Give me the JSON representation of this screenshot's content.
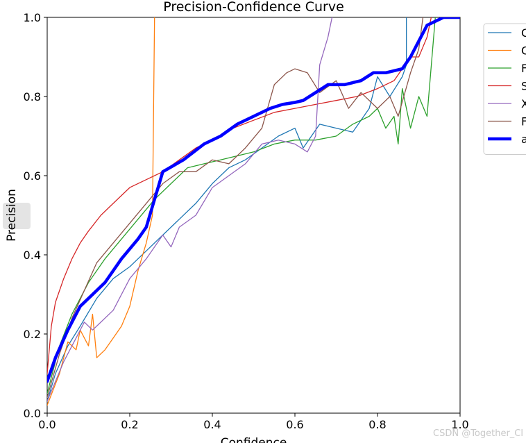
{
  "chart_data": {
    "type": "line",
    "title": "Precision-Confidence Curve",
    "xlabel": "Confidence",
    "ylabel": "Precision",
    "xlim": [
      0,
      1
    ],
    "ylim": [
      0,
      1
    ],
    "xticks": [
      "0.0",
      "0.2",
      "0.4",
      "0.6",
      "0.8",
      "1.0"
    ],
    "yticks": [
      "0.0",
      "0.2",
      "0.4",
      "0.6",
      "0.8",
      "1.0"
    ],
    "grid": false,
    "legend_position": "right (partially cut off)",
    "series": [
      {
        "name": "C",
        "color": "#1f77b4",
        "width": 1.3,
        "x": [
          0,
          0.02,
          0.05,
          0.08,
          0.12,
          0.16,
          0.2,
          0.24,
          0.28,
          0.32,
          0.36,
          0.4,
          0.44,
          0.48,
          0.52,
          0.56,
          0.6,
          0.62,
          0.66,
          0.7,
          0.74,
          0.78,
          0.8,
          0.83,
          0.86,
          0.87,
          0.87
        ],
        "values": [
          0.03,
          0.1,
          0.17,
          0.22,
          0.29,
          0.34,
          0.37,
          0.41,
          0.45,
          0.49,
          0.53,
          0.58,
          0.62,
          0.64,
          0.67,
          0.7,
          0.72,
          0.67,
          0.73,
          0.72,
          0.71,
          0.77,
          0.85,
          0.8,
          0.85,
          0.88,
          1.0
        ]
      },
      {
        "name": "C",
        "color": "#ff7f0e",
        "width": 1.3,
        "x": [
          0,
          0.03,
          0.05,
          0.07,
          0.08,
          0.1,
          0.11,
          0.12,
          0.14,
          0.16,
          0.18,
          0.2,
          0.22,
          0.24,
          0.255,
          0.258,
          0.26
        ],
        "values": [
          0.02,
          0.1,
          0.18,
          0.16,
          0.21,
          0.17,
          0.25,
          0.14,
          0.16,
          0.19,
          0.22,
          0.27,
          0.36,
          0.43,
          0.5,
          0.8,
          1.0
        ]
      },
      {
        "name": "F",
        "color": "#2ca02c",
        "width": 1.3,
        "x": [
          0,
          0.03,
          0.06,
          0.1,
          0.14,
          0.18,
          0.22,
          0.26,
          0.3,
          0.34,
          0.38,
          0.42,
          0.46,
          0.5,
          0.55,
          0.6,
          0.65,
          0.7,
          0.74,
          0.78,
          0.8,
          0.82,
          0.84,
          0.85,
          0.86,
          0.88,
          0.9,
          0.92,
          0.94
        ],
        "values": [
          0.05,
          0.17,
          0.25,
          0.33,
          0.39,
          0.44,
          0.49,
          0.54,
          0.58,
          0.62,
          0.63,
          0.64,
          0.65,
          0.66,
          0.68,
          0.69,
          0.69,
          0.7,
          0.73,
          0.75,
          0.77,
          0.72,
          0.75,
          0.68,
          0.82,
          0.72,
          0.8,
          0.75,
          1.0
        ]
      },
      {
        "name": "S",
        "color": "#d62728",
        "width": 1.3,
        "x": [
          0,
          0.01,
          0.02,
          0.04,
          0.06,
          0.08,
          0.1,
          0.13,
          0.16,
          0.2,
          0.24,
          0.28,
          0.32,
          0.36,
          0.4,
          0.45,
          0.5,
          0.55,
          0.6,
          0.65,
          0.7,
          0.75,
          0.8,
          0.84,
          0.86,
          0.88,
          0.9,
          0.92,
          0.93
        ],
        "values": [
          0.1,
          0.22,
          0.28,
          0.34,
          0.39,
          0.43,
          0.46,
          0.5,
          0.53,
          0.57,
          0.59,
          0.61,
          0.64,
          0.67,
          0.69,
          0.72,
          0.74,
          0.76,
          0.77,
          0.78,
          0.79,
          0.8,
          0.82,
          0.84,
          0.87,
          0.9,
          0.9,
          0.95,
          1.0
        ]
      },
      {
        "name": "X",
        "color": "#9467bd",
        "width": 1.3,
        "x": [
          0,
          0.04,
          0.07,
          0.09,
          0.11,
          0.13,
          0.16,
          0.2,
          0.24,
          0.28,
          0.3,
          0.32,
          0.36,
          0.4,
          0.44,
          0.48,
          0.52,
          0.56,
          0.6,
          0.63,
          0.65,
          0.66,
          0.68,
          0.69
        ],
        "values": [
          0.03,
          0.13,
          0.19,
          0.23,
          0.21,
          0.23,
          0.26,
          0.34,
          0.39,
          0.45,
          0.42,
          0.47,
          0.5,
          0.57,
          0.6,
          0.63,
          0.68,
          0.69,
          0.68,
          0.66,
          0.7,
          0.88,
          0.95,
          1.0
        ]
      },
      {
        "name": "F",
        "color": "#8c564b",
        "width": 1.3,
        "x": [
          0,
          0.03,
          0.06,
          0.09,
          0.12,
          0.16,
          0.2,
          0.24,
          0.28,
          0.32,
          0.36,
          0.4,
          0.44,
          0.48,
          0.52,
          0.55,
          0.58,
          0.6,
          0.63,
          0.66,
          0.7,
          0.73,
          0.76,
          0.8,
          0.83,
          0.85,
          0.88,
          0.9,
          0.91
        ],
        "values": [
          0.04,
          0.15,
          0.24,
          0.31,
          0.38,
          0.43,
          0.48,
          0.53,
          0.58,
          0.61,
          0.61,
          0.64,
          0.63,
          0.67,
          0.72,
          0.83,
          0.86,
          0.87,
          0.86,
          0.81,
          0.84,
          0.77,
          0.81,
          0.77,
          0.8,
          0.75,
          0.86,
          0.92,
          1.0
        ]
      },
      {
        "name": "a",
        "color": "#0000ff",
        "width": 4.5,
        "x": [
          0,
          0.02,
          0.05,
          0.08,
          0.1,
          0.14,
          0.18,
          0.22,
          0.24,
          0.28,
          0.33,
          0.38,
          0.42,
          0.46,
          0.5,
          0.54,
          0.57,
          0.6,
          0.62,
          0.65,
          0.68,
          0.72,
          0.76,
          0.79,
          0.82,
          0.86,
          0.88,
          0.9,
          0.92,
          0.94,
          0.96,
          1.0
        ],
        "values": [
          0.08,
          0.14,
          0.21,
          0.27,
          0.29,
          0.33,
          0.39,
          0.44,
          0.47,
          0.61,
          0.64,
          0.68,
          0.7,
          0.73,
          0.75,
          0.77,
          0.78,
          0.785,
          0.79,
          0.81,
          0.83,
          0.83,
          0.84,
          0.86,
          0.86,
          0.87,
          0.9,
          0.94,
          0.98,
          0.99,
          1.0,
          1.0
        ]
      }
    ]
  },
  "watermark": "CSDN @Together_Cl"
}
